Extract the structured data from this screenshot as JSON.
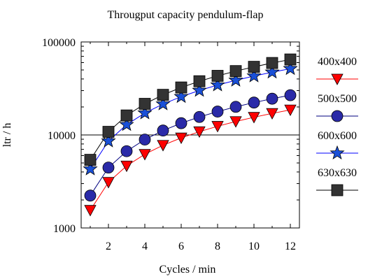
{
  "chart_data": {
    "type": "line",
    "title": "Througput capacity pendulum-flap",
    "xlabel": "Cycles / min",
    "ylabel": "ltr / h",
    "xlim": [
      0.5,
      12.5
    ],
    "ylim": [
      1000,
      100000
    ],
    "yscale": "log",
    "x_ticks": [
      2,
      4,
      6,
      8,
      10,
      12
    ],
    "y_ticks": [
      1000,
      10000,
      100000
    ],
    "y_tick_labels": [
      "1000",
      "10000",
      "100000"
    ],
    "grid": "horizontal line at 10000 only",
    "legend_position": "right",
    "x": [
      1,
      2,
      3,
      4,
      5,
      6,
      7,
      8,
      9,
      10,
      11,
      12
    ],
    "series": [
      {
        "name": "400x400",
        "color": "#ff0000",
        "marker": "triangle-down",
        "marker_color": "#ff0000",
        "values": [
          1550,
          3100,
          4650,
          6200,
          7750,
          9300,
          10850,
          12400,
          13950,
          15500,
          17050,
          18600
        ]
      },
      {
        "name": "500x500",
        "color": "#00007f",
        "marker": "circle",
        "marker_color": "#2a2aa8",
        "values": [
          2230,
          4460,
          6690,
          8920,
          11150,
          13380,
          15610,
          17840,
          20070,
          22300,
          24530,
          26760
        ]
      },
      {
        "name": "600x600",
        "color": "#0000ff",
        "marker": "star",
        "marker_color": "#1a50d8",
        "values": [
          4300,
          8600,
          12900,
          17200,
          21500,
          25800,
          30100,
          34400,
          38700,
          43000,
          47300,
          51600
        ]
      },
      {
        "name": "630x630",
        "color": "#000000",
        "marker": "square",
        "marker_color": "#333333",
        "values": [
          5400,
          10800,
          16200,
          21600,
          27000,
          32400,
          37800,
          43200,
          48600,
          54000,
          59400,
          64800
        ]
      }
    ]
  }
}
